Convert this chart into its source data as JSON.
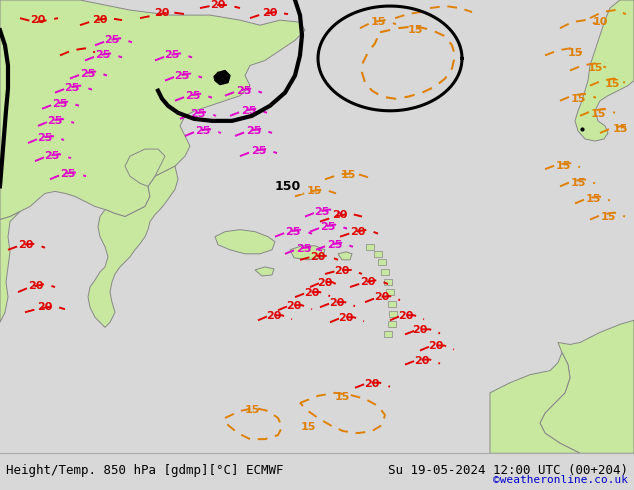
{
  "title_left": "Height/Temp. 850 hPa [gdmp][°C] ECMWF",
  "title_right": "Su 19-05-2024 12:00 UTC (00+204)",
  "credit": "©weatheronline.co.uk",
  "bg_color": "#d8d8d8",
  "map_bg_color": "#d8d8d8",
  "land_color": "#c8e8a0",
  "border_color": "#888888",
  "figsize": [
    6.34,
    4.9
  ],
  "dpi": 100,
  "bottom_bar_color": "#f0f0f0",
  "title_fontsize": 9.0,
  "credit_color": "#0000cc",
  "credit_fontsize": 8
}
